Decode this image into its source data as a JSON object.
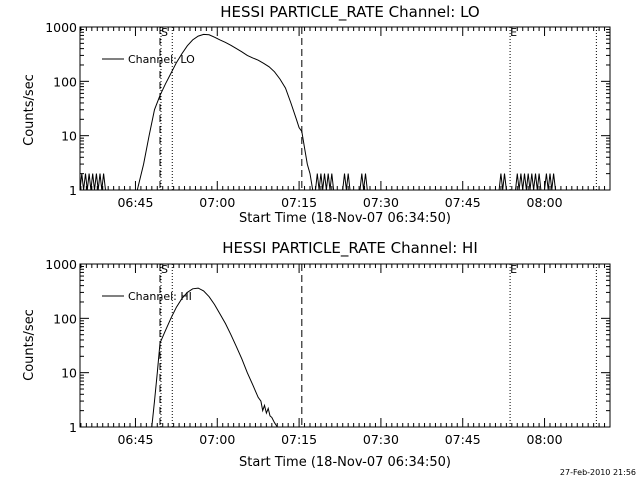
{
  "timestamp": "27-Feb-2010 21:56",
  "chart_data": [
    {
      "type": "line",
      "title": "HESSI PARTICLE_RATE Channel: LO",
      "xlabel": "Start Time (18-Nov-07 06:34:50)",
      "ylabel": "Counts/sec",
      "yscale": "log",
      "ylim": [
        1,
        1000
      ],
      "xlim": [
        "06:34:50",
        "08:12:00"
      ],
      "y_ticks": [
        "1",
        "10",
        "100",
        "1000"
      ],
      "x_ticks": [
        "06:45",
        "07:00",
        "07:15",
        "07:30",
        "07:45",
        "08:00"
      ],
      "legend": {
        "label": "Channel: LO",
        "position": "top-left"
      },
      "markers": [
        {
          "label": "S",
          "time": "06:49:30",
          "style": "dotted"
        },
        {
          "label": "E",
          "time": "07:53:30",
          "style": "dotted"
        }
      ],
      "dashed_lines": [
        "06:49:30",
        "07:15:30"
      ],
      "dotted_lines": [
        "06:51:45",
        "08:09:30"
      ],
      "series": [
        {
          "name": "Channel: LO",
          "points": [
            [
              "06:34:50",
              1
            ],
            [
              "06:35:10",
              2
            ],
            [
              "06:35:30",
              1
            ],
            [
              "06:35:50",
              2
            ],
            [
              "06:36:10",
              1
            ],
            [
              "06:36:30",
              2
            ],
            [
              "06:36:50",
              1
            ],
            [
              "06:37:10",
              2
            ],
            [
              "06:37:30",
              1
            ],
            [
              "06:37:50",
              2
            ],
            [
              "06:38:10",
              1
            ],
            [
              "06:38:30",
              2
            ],
            [
              "06:38:50",
              1
            ],
            [
              "06:39:10",
              2
            ],
            [
              "06:39:30",
              1
            ],
            [
              "06:45:20",
              1
            ],
            [
              "06:46:30",
              3
            ],
            [
              "06:47:30",
              10
            ],
            [
              "06:48:30",
              30
            ],
            [
              "06:49:30",
              55
            ],
            [
              "06:50:30",
              90
            ],
            [
              "06:51:30",
              140
            ],
            [
              "06:52:30",
              220
            ],
            [
              "06:53:30",
              320
            ],
            [
              "06:54:30",
              450
            ],
            [
              "06:55:30",
              580
            ],
            [
              "06:56:30",
              680
            ],
            [
              "06:57:30",
              730
            ],
            [
              "06:58:30",
              720
            ],
            [
              "06:59:30",
              650
            ],
            [
              "07:00:30",
              580
            ],
            [
              "07:01:30",
              520
            ],
            [
              "07:02:30",
              460
            ],
            [
              "07:03:30",
              400
            ],
            [
              "07:04:30",
              350
            ],
            [
              "07:05:30",
              300
            ],
            [
              "07:06:30",
              270
            ],
            [
              "07:07:30",
              245
            ],
            [
              "07:08:30",
              215
            ],
            [
              "07:09:30",
              185
            ],
            [
              "07:10:30",
              150
            ],
            [
              "07:11:30",
              110
            ],
            [
              "07:12:30",
              75
            ],
            [
              "07:13:30",
              40
            ],
            [
              "07:14:30",
              20
            ],
            [
              "07:15:00",
              14
            ],
            [
              "07:15:30",
              12
            ],
            [
              "07:16:00",
              6
            ],
            [
              "07:16:30",
              3
            ],
            [
              "07:17:00",
              2
            ],
            [
              "07:17:30",
              1
            ],
            [
              "07:18:00",
              1
            ],
            [
              "07:18:20",
              2
            ],
            [
              "07:18:40",
              1
            ],
            [
              "07:19:00",
              2
            ],
            [
              "07:19:20",
              1
            ],
            [
              "07:19:40",
              2
            ],
            [
              "07:20:00",
              1
            ],
            [
              "07:20:20",
              2
            ],
            [
              "07:20:40",
              1
            ],
            [
              "07:21:00",
              2
            ],
            [
              "07:21:20",
              1
            ],
            [
              "07:23:00",
              1
            ],
            [
              "07:23:20",
              2
            ],
            [
              "07:23:40",
              1
            ],
            [
              "07:24:00",
              2
            ],
            [
              "07:24:20",
              1
            ],
            [
              "07:26:10",
              1
            ],
            [
              "07:26:30",
              2
            ],
            [
              "07:26:50",
              1
            ],
            [
              "07:27:10",
              2
            ],
            [
              "07:27:30",
              1
            ],
            [
              "07:51:40",
              1
            ],
            [
              "07:52:00",
              2
            ],
            [
              "07:52:20",
              1
            ],
            [
              "07:52:40",
              2
            ],
            [
              "07:53:00",
              1
            ],
            [
              "07:54:40",
              1
            ],
            [
              "07:55:00",
              2
            ],
            [
              "07:55:20",
              1
            ],
            [
              "07:55:40",
              2
            ],
            [
              "07:56:00",
              1
            ],
            [
              "07:56:20",
              2
            ],
            [
              "07:56:40",
              1
            ],
            [
              "07:57:00",
              2
            ],
            [
              "07:57:20",
              1
            ],
            [
              "07:57:40",
              2
            ],
            [
              "07:58:00",
              1
            ],
            [
              "07:58:20",
              2
            ],
            [
              "07:58:40",
              1
            ],
            [
              "07:59:00",
              2
            ],
            [
              "07:59:20",
              1
            ],
            [
              "08:00:00",
              1
            ],
            [
              "08:00:20",
              2
            ],
            [
              "08:00:40",
              1
            ],
            [
              "08:01:00",
              2
            ],
            [
              "08:01:20",
              1
            ],
            [
              "08:01:40",
              2
            ],
            [
              "08:02:00",
              1
            ]
          ]
        }
      ]
    },
    {
      "type": "line",
      "title": "HESSI PARTICLE_RATE Channel: HI",
      "xlabel": "Start Time (18-Nov-07 06:34:50)",
      "ylabel": "Counts/sec",
      "yscale": "log",
      "ylim": [
        1,
        1000
      ],
      "xlim": [
        "06:34:50",
        "08:12:00"
      ],
      "y_ticks": [
        "1",
        "10",
        "100",
        "1000"
      ],
      "x_ticks": [
        "06:45",
        "07:00",
        "07:15",
        "07:30",
        "07:45",
        "08:00"
      ],
      "legend": {
        "label": "Channel: HI",
        "position": "top-left"
      },
      "markers": [
        {
          "label": "S",
          "time": "06:49:30",
          "style": "dotted"
        },
        {
          "label": "E",
          "time": "07:53:30",
          "style": "dotted"
        }
      ],
      "dashed_lines": [
        "06:49:30",
        "07:15:30"
      ],
      "dotted_lines": [
        "06:51:45",
        "08:09:30"
      ],
      "series": [
        {
          "name": "Channel: HI",
          "points": [
            [
              "06:48:00",
              1
            ],
            [
              "06:48:30",
              3
            ],
            [
              "06:49:00",
              10
            ],
            [
              "06:49:30",
              35
            ],
            [
              "06:50:30",
              60
            ],
            [
              "06:51:30",
              100
            ],
            [
              "06:52:30",
              160
            ],
            [
              "06:53:30",
              230
            ],
            [
              "06:54:30",
              300
            ],
            [
              "06:55:30",
              350
            ],
            [
              "06:56:30",
              360
            ],
            [
              "06:57:30",
              320
            ],
            [
              "06:58:30",
              250
            ],
            [
              "06:59:30",
              180
            ],
            [
              "07:00:30",
              120
            ],
            [
              "07:01:30",
              80
            ],
            [
              "07:02:30",
              50
            ],
            [
              "07:03:30",
              30
            ],
            [
              "07:04:30",
              18
            ],
            [
              "07:05:30",
              10
            ],
            [
              "07:06:30",
              6
            ],
            [
              "07:07:30",
              3.5
            ],
            [
              "07:08:00",
              3
            ],
            [
              "07:08:20",
              2
            ],
            [
              "07:08:40",
              2.5
            ],
            [
              "07:09:00",
              1.8
            ],
            [
              "07:09:20",
              2.2
            ],
            [
              "07:09:40",
              1.6
            ],
            [
              "07:10:00",
              1.5
            ],
            [
              "07:10:30",
              1.2
            ],
            [
              "07:11:00",
              1
            ]
          ]
        }
      ]
    }
  ]
}
